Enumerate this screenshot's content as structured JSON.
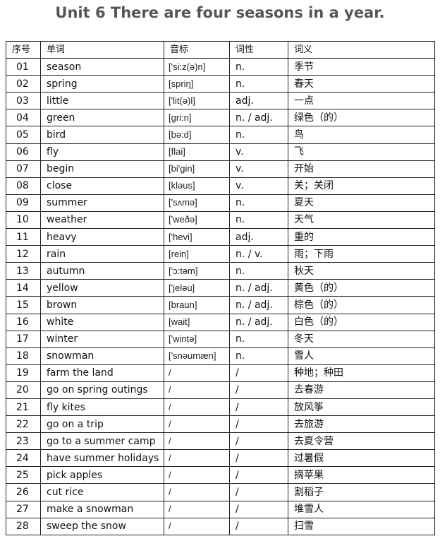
{
  "title": "Unit 6 There are four seasons in a year.",
  "table": {
    "headers": [
      "序号",
      "单词",
      "音标",
      "词性",
      "词义"
    ],
    "rows": [
      [
        "01",
        "season",
        "['si:z(ə)n]",
        "n.",
        "季节"
      ],
      [
        "02",
        "spring",
        " [spriŋ]",
        "n.",
        "春天"
      ],
      [
        "03",
        "little",
        "['lit(ə)l]",
        "adj.",
        "一点"
      ],
      [
        "04",
        "green",
        "[gri:n]",
        "n. / adj.",
        "绿色（的）"
      ],
      [
        "05",
        "bird",
        "[bə:d]",
        "n.",
        "鸟"
      ],
      [
        "06",
        "fly",
        "[flai]",
        "v.",
        "飞"
      ],
      [
        "07",
        "begin",
        "[bi'gin]",
        "v.",
        "开始"
      ],
      [
        "08",
        "close",
        "[kləus]",
        "v.",
        "关；关闭"
      ],
      [
        "09",
        "summer",
        "['sʌmə]",
        "n.",
        "夏天"
      ],
      [
        "10",
        "weather",
        "['weðə]",
        "n.",
        "天气"
      ],
      [
        "11",
        "heavy",
        "['hevi]",
        "adj.",
        "重的"
      ],
      [
        "12",
        "rain",
        "[rein]",
        "n. / v.",
        "雨；下雨"
      ],
      [
        "13",
        "autumn",
        "['ɔ:təm]",
        "n.",
        "秋天"
      ],
      [
        "14",
        "yellow",
        "['jeləu]",
        "n. / adj.",
        "黄色（的）"
      ],
      [
        "15",
        "brown",
        "[braun]",
        "n. / adj.",
        "棕色（的）"
      ],
      [
        "16",
        "white",
        "[wait]",
        "n. / adj.",
        "白色（的）"
      ],
      [
        "17",
        "winter",
        "['wintə]",
        "n.",
        "冬天"
      ],
      [
        "18",
        "snowman",
        "['snəumæn]",
        "n.",
        "雪人"
      ],
      [
        "19",
        "farm the land",
        "/",
        "/",
        "种地；种田"
      ],
      [
        "20",
        "go on spring outings",
        "/",
        "/",
        "去春游"
      ],
      [
        "21",
        "fly kites",
        "/",
        "/",
        "放风筝"
      ],
      [
        "22",
        "go on a trip",
        "/",
        "/",
        "去旅游"
      ],
      [
        "23",
        "go to a summer camp",
        "/",
        "/",
        "去夏令营"
      ],
      [
        "24",
        "have summer holidays",
        "/",
        "/",
        "过暑假"
      ],
      [
        "25",
        "pick apples",
        "/",
        "/",
        "摘苹果"
      ],
      [
        "26",
        "cut rice",
        "/",
        "/",
        "割稻子"
      ],
      [
        "27",
        "make a snowman",
        "/",
        "/",
        "堆雪人"
      ],
      [
        "28",
        "sweep the snow",
        "/",
        "/",
        "扫雪"
      ]
    ]
  }
}
